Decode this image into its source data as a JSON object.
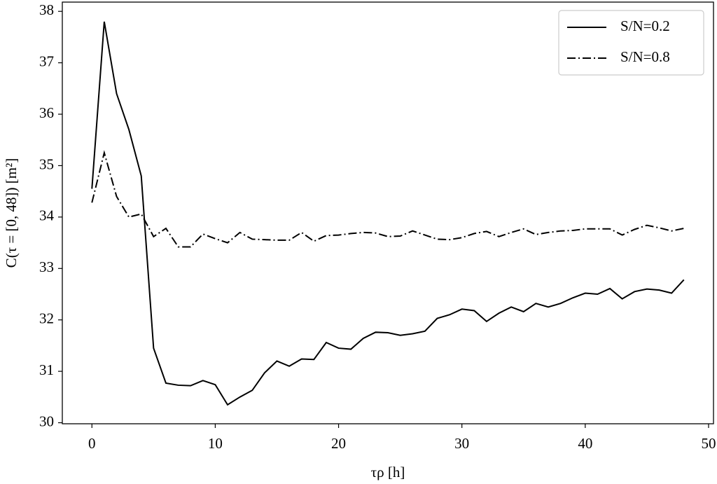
{
  "chart_data": {
    "type": "line",
    "x_label": "τρ [h]",
    "y_label": "C(τ = [0, 48]) [m²]",
    "x": [
      0,
      1,
      2,
      3,
      4,
      5,
      6,
      7,
      8,
      9,
      10,
      11,
      12,
      13,
      14,
      15,
      16,
      17,
      18,
      19,
      20,
      21,
      22,
      23,
      24,
      25,
      26,
      27,
      28,
      29,
      30,
      31,
      32,
      33,
      34,
      35,
      36,
      37,
      38,
      39,
      40,
      41,
      42,
      43,
      44,
      45,
      46,
      47,
      48
    ],
    "series": [
      {
        "name": "S/N=0.2",
        "color": "#000000",
        "style": "solid",
        "values": [
          34.55,
          37.8,
          36.4,
          35.7,
          34.8,
          31.45,
          30.77,
          30.73,
          30.72,
          30.82,
          30.74,
          30.35,
          30.5,
          30.63,
          30.97,
          31.2,
          31.1,
          31.24,
          31.23,
          31.56,
          31.45,
          31.43,
          31.64,
          31.76,
          31.75,
          31.7,
          31.73,
          31.78,
          32.03,
          32.1,
          32.21,
          32.18,
          31.97,
          32.13,
          32.25,
          32.16,
          32.32,
          32.25,
          32.32,
          32.43,
          32.52,
          32.5,
          32.61,
          32.41,
          32.55,
          32.6,
          32.58,
          32.52,
          32.78
        ]
      },
      {
        "name": "S/N=0.8",
        "color": "#000000",
        "style": "dashdot",
        "values": [
          34.28,
          35.25,
          34.4,
          34.0,
          34.06,
          33.62,
          33.78,
          33.42,
          33.42,
          33.67,
          33.58,
          33.5,
          33.7,
          33.57,
          33.56,
          33.55,
          33.55,
          33.7,
          33.53,
          33.64,
          33.65,
          33.68,
          33.7,
          33.69,
          33.62,
          33.63,
          33.73,
          33.65,
          33.57,
          33.56,
          33.6,
          33.68,
          33.72,
          33.62,
          33.7,
          33.77,
          33.66,
          33.7,
          33.73,
          33.74,
          33.77,
          33.77,
          33.77,
          33.65,
          33.76,
          33.84,
          33.79,
          33.73,
          33.78
        ]
      }
    ],
    "xlim": [
      -2.4,
      50.4
    ],
    "ylim": [
      29.98,
      38.18
    ],
    "xticks": [
      0,
      10,
      20,
      30,
      40,
      50
    ],
    "yticks": [
      30,
      31,
      32,
      33,
      34,
      35,
      36,
      37,
      38
    ],
    "grid": false,
    "legend": "upper right"
  }
}
